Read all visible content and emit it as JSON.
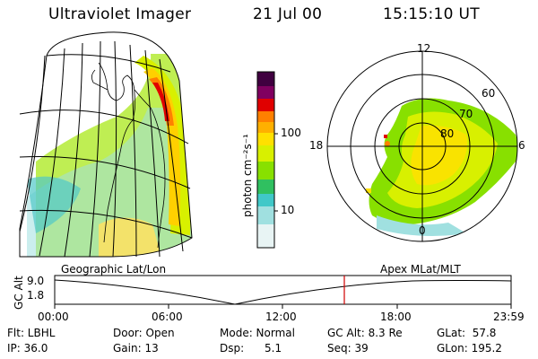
{
  "header": {
    "title": "Ultraviolet Imager",
    "date": "21 Jul 00",
    "time": "15:15:10 UT"
  },
  "colorbar": {
    "label": "photon cm⁻²s⁻¹",
    "ticks": [
      "100",
      "10"
    ],
    "colors": [
      "#ffffff",
      "#a0e0e0",
      "#40c8c8",
      "#30c060",
      "#88e000",
      "#d8f000",
      "#ffe000",
      "#ffb000",
      "#ff8000",
      "#e00000",
      "#c00040",
      "#800060",
      "#400040"
    ]
  },
  "polar": {
    "mlt_labels": {
      "top": "12",
      "left": "18",
      "right": "6",
      "bottom": "0"
    },
    "lat_labels": [
      "60",
      "70",
      "80"
    ]
  },
  "left_map_caption": "Geographic Lat/Lon",
  "right_map_caption": "Apex MLat/MLT",
  "altitude_plot": {
    "ylabel": "GC Alt",
    "yticks": [
      "9.0",
      "1.8"
    ],
    "xticks": [
      "00:00",
      "06:00",
      "12:00",
      "18:00",
      "23:59"
    ],
    "current_marker_color": "#d00000"
  },
  "info": {
    "flt": "Flt: LBHL",
    "ip": "IP: 36.0",
    "door": "Door: Open",
    "gain": "Gain: 13",
    "mode": "Mode: Normal",
    "dsp": "Dsp:      5.1",
    "gcalt": "GC Alt: 8.3 Re",
    "seq": "Seq: 39",
    "glat": "GLat:  57.8",
    "glon": "GLon: 195.2"
  }
}
